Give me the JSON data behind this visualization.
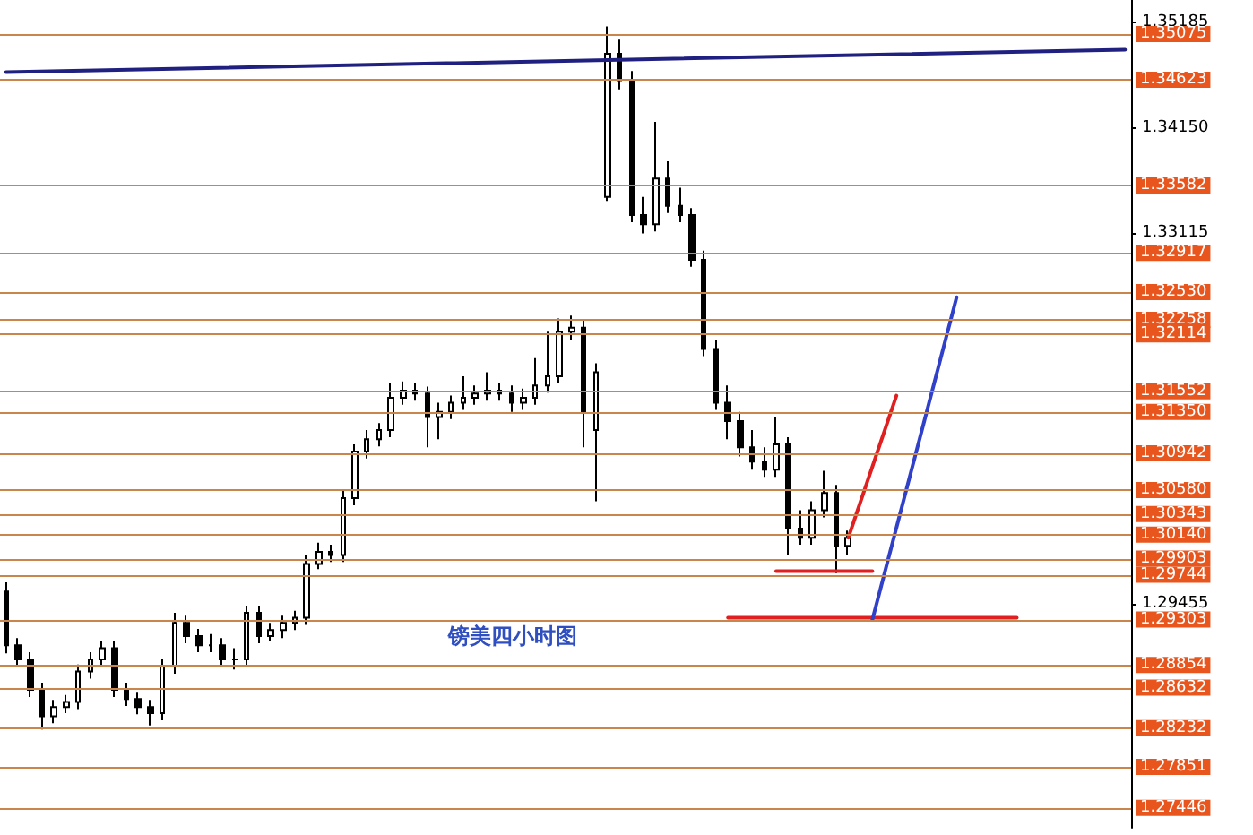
{
  "chart_data": {
    "type": "candlestick",
    "categories": [
      null,
      null,
      null,
      null,
      null,
      null,
      null,
      null,
      null,
      null,
      null,
      null,
      null,
      null,
      null,
      null,
      null,
      null,
      null,
      null,
      null,
      null,
      null,
      null,
      null,
      null,
      null,
      null,
      null,
      null,
      null,
      null,
      null,
      null,
      null,
      null,
      null,
      null,
      null,
      null,
      null,
      null,
      null,
      null,
      null,
      null,
      null,
      null,
      null,
      null,
      null,
      null,
      null,
      null,
      null,
      null,
      null,
      null,
      null,
      null,
      null,
      null,
      null,
      null,
      null,
      null,
      null,
      null,
      null,
      null,
      null,
      null,
      null,
      null,
      null,
      null,
      null,
      null,
      null,
      null,
      null,
      null,
      null,
      null,
      null,
      null,
      null,
      null,
      null,
      null,
      null,
      null,
      null,
      null
    ],
    "ohlc": [
      [
        1.2958,
        1.2967,
        1.2897,
        1.2905
      ],
      [
        1.2905,
        1.2912,
        1.2884,
        1.2891
      ],
      [
        1.2891,
        1.2898,
        1.2854,
        1.2861
      ],
      [
        1.2861,
        1.2868,
        1.2822,
        1.2835
      ],
      [
        1.2835,
        1.2851,
        1.2828,
        1.2844
      ],
      [
        1.2844,
        1.2856,
        1.2838,
        1.2849
      ],
      [
        1.2849,
        1.2886,
        1.2842,
        1.2879
      ],
      [
        1.2879,
        1.2898,
        1.2872,
        1.2891
      ],
      [
        1.2891,
        1.2909,
        1.2884,
        1.2902
      ],
      [
        1.2902,
        1.2909,
        1.2854,
        1.2861
      ],
      [
        1.2861,
        1.2868,
        1.2845,
        1.2852
      ],
      [
        1.2852,
        1.2859,
        1.2837,
        1.2844
      ],
      [
        1.2844,
        1.2851,
        1.2826,
        1.2838
      ],
      [
        1.2838,
        1.2891,
        1.2831,
        1.2884
      ],
      [
        1.2884,
        1.2937,
        1.2877,
        1.2927
      ],
      [
        1.2927,
        1.2934,
        1.2907,
        1.2914
      ],
      [
        1.2914,
        1.2921,
        1.2898,
        1.2905
      ],
      [
        1.2905,
        1.2916,
        1.2898,
        1.2905
      ],
      [
        1.2905,
        1.2912,
        1.2884,
        1.2891
      ],
      [
        1.2891,
        1.2902,
        1.2881,
        1.2891
      ],
      [
        1.2891,
        1.2944,
        1.2884,
        1.2937
      ],
      [
        1.2937,
        1.2944,
        1.2907,
        1.2914
      ],
      [
        1.2914,
        1.2927,
        1.2909,
        1.292
      ],
      [
        1.292,
        1.2934,
        1.2912,
        1.2927
      ],
      [
        1.2927,
        1.2939,
        1.292,
        1.2932
      ],
      [
        1.2932,
        1.2994,
        1.2925,
        1.2985
      ],
      [
        1.2985,
        1.3006,
        1.298,
        1.2997
      ],
      [
        1.2997,
        1.3004,
        1.2987,
        1.2994
      ],
      [
        1.2994,
        1.3057,
        1.2987,
        1.305
      ],
      [
        1.305,
        1.3103,
        1.3043,
        1.3096
      ],
      [
        1.3096,
        1.3117,
        1.3089,
        1.3108
      ],
      [
        1.3108,
        1.3124,
        1.3101,
        1.3117
      ],
      [
        1.3117,
        1.3163,
        1.311,
        1.3149
      ],
      [
        1.3149,
        1.3165,
        1.3142,
        1.3156
      ],
      [
        1.3156,
        1.3163,
        1.3146,
        1.3153
      ],
      [
        1.3153,
        1.316,
        1.31,
        1.313
      ],
      [
        1.313,
        1.3144,
        1.3108,
        1.3135
      ],
      [
        1.3135,
        1.3151,
        1.3128,
        1.3144
      ],
      [
        1.3144,
        1.317,
        1.3137,
        1.3149
      ],
      [
        1.3149,
        1.3161,
        1.3142,
        1.3153
      ],
      [
        1.3153,
        1.3174,
        1.3146,
        1.3156
      ],
      [
        1.3156,
        1.3163,
        1.3146,
        1.3153
      ],
      [
        1.3153,
        1.3161,
        1.3135,
        1.3144
      ],
      [
        1.3144,
        1.3158,
        1.3137,
        1.3149
      ],
      [
        1.3149,
        1.3188,
        1.3142,
        1.3161
      ],
      [
        1.3161,
        1.3214,
        1.3154,
        1.317
      ],
      [
        1.317,
        1.3227,
        1.3163,
        1.3214
      ],
      [
        1.3214,
        1.323,
        1.3206,
        1.3218
      ],
      [
        1.3218,
        1.3225,
        1.31,
        1.3135
      ],
      [
        1.3117,
        1.3183,
        1.3047,
        1.3174
      ],
      [
        1.3347,
        1.3515,
        1.3343,
        1.3488
      ],
      [
        1.3488,
        1.3502,
        1.3453,
        1.3462
      ],
      [
        1.3462,
        1.3471,
        1.3322,
        1.3329
      ],
      [
        1.3329,
        1.3347,
        1.3311,
        1.332
      ],
      [
        1.332,
        1.3421,
        1.3313,
        1.3365
      ],
      [
        1.3365,
        1.3382,
        1.3331,
        1.3338
      ],
      [
        1.3338,
        1.3356,
        1.3322,
        1.3329
      ],
      [
        1.3329,
        1.3336,
        1.3278,
        1.3285
      ],
      [
        1.3285,
        1.3294,
        1.319,
        1.3197
      ],
      [
        1.3197,
        1.3206,
        1.3137,
        1.3144
      ],
      [
        1.3144,
        1.3161,
        1.3108,
        1.3126
      ],
      [
        1.3126,
        1.3135,
        1.3091,
        1.31
      ],
      [
        1.31,
        1.3117,
        1.3078,
        1.3086
      ],
      [
        1.3086,
        1.31,
        1.3071,
        1.3078
      ],
      [
        1.3078,
        1.313,
        1.3071,
        1.3103
      ],
      [
        1.3103,
        1.311,
        1.2994,
        1.302
      ],
      [
        1.302,
        1.3038,
        1.3004,
        1.3011
      ],
      [
        1.3011,
        1.3047,
        1.3004,
        1.3038
      ],
      [
        1.3038,
        1.3077,
        1.3031,
        1.3055
      ],
      [
        1.3055,
        1.3063,
        1.2976,
        1.3003
      ],
      [
        1.3003,
        1.3018,
        1.2994,
        1.3011
      ],
      null,
      null,
      null,
      null,
      null,
      null,
      null,
      null,
      null,
      null,
      null,
      null,
      null,
      null,
      null,
      null,
      null,
      null,
      null,
      null,
      null,
      null,
      null
    ],
    "series": [
      {
        "type": "line",
        "color": "#202080",
        "values": [
          1.347,
          null,
          null,
          null,
          null,
          null,
          null,
          null,
          null,
          null,
          null,
          null,
          null,
          null,
          null,
          null,
          null,
          null,
          null,
          null,
          null,
          null,
          null,
          null,
          null,
          null,
          null,
          null,
          null,
          null,
          null,
          null,
          null,
          null,
          null,
          null,
          null,
          null,
          null,
          null,
          null,
          null,
          null,
          null,
          null,
          null,
          null,
          null,
          null,
          null,
          null,
          null,
          null,
          null,
          null,
          null,
          null,
          null,
          null,
          null,
          null,
          null,
          null,
          null,
          null,
          null,
          null,
          null,
          null,
          null,
          null,
          null,
          null,
          null,
          null,
          null,
          null,
          null,
          null,
          null,
          null,
          null,
          null,
          null,
          null,
          null,
          null,
          null,
          null,
          null,
          null,
          null,
          null,
          1.3492
        ]
      },
      {
        "type": "line",
        "color": "#e02020",
        "values": [
          null,
          null,
          null,
          null,
          null,
          null,
          null,
          null,
          null,
          null,
          null,
          null,
          null,
          null,
          null,
          null,
          null,
          null,
          null,
          null,
          null,
          null,
          null,
          null,
          null,
          null,
          null,
          null,
          null,
          null,
          null,
          null,
          null,
          null,
          null,
          null,
          null,
          null,
          null,
          null,
          null,
          null,
          null,
          null,
          null,
          null,
          null,
          null,
          null,
          null,
          null,
          null,
          null,
          null,
          null,
          null,
          null,
          null,
          null,
          null,
          null,
          null,
          null,
          null,
          1.2978,
          null,
          null,
          null,
          null,
          null,
          null,
          null,
          1.2978,
          null,
          null,
          null,
          null,
          null,
          null,
          null,
          null,
          null,
          null,
          null,
          null,
          null,
          null,
          null,
          null,
          null,
          null,
          null,
          null,
          null
        ]
      },
      {
        "type": "line",
        "color": "#e02020",
        "values": [
          null,
          null,
          null,
          null,
          null,
          null,
          null,
          null,
          null,
          null,
          null,
          null,
          null,
          null,
          null,
          null,
          null,
          null,
          null,
          null,
          null,
          null,
          null,
          null,
          null,
          null,
          null,
          null,
          null,
          null,
          null,
          null,
          null,
          null,
          null,
          null,
          null,
          null,
          null,
          null,
          null,
          null,
          null,
          null,
          null,
          null,
          null,
          null,
          null,
          null,
          null,
          null,
          null,
          null,
          null,
          null,
          null,
          null,
          null,
          null,
          1.2932,
          null,
          null,
          null,
          null,
          null,
          null,
          null,
          null,
          null,
          null,
          null,
          null,
          null,
          null,
          null,
          null,
          null,
          null,
          null,
          null,
          null,
          null,
          null,
          1.2932,
          null,
          null,
          null,
          null,
          null,
          null,
          null,
          null,
          null
        ]
      },
      {
        "type": "line",
        "color": "#e02020",
        "values": [
          null,
          null,
          null,
          null,
          null,
          null,
          null,
          null,
          null,
          null,
          null,
          null,
          null,
          null,
          null,
          null,
          null,
          null,
          null,
          null,
          null,
          null,
          null,
          null,
          null,
          null,
          null,
          null,
          null,
          null,
          null,
          null,
          null,
          null,
          null,
          null,
          null,
          null,
          null,
          null,
          null,
          null,
          null,
          null,
          null,
          null,
          null,
          null,
          null,
          null,
          null,
          null,
          null,
          null,
          null,
          null,
          null,
          null,
          null,
          null,
          null,
          null,
          null,
          null,
          null,
          null,
          null,
          null,
          null,
          null,
          1.3011,
          null,
          null,
          null,
          1.3151,
          null,
          null,
          null,
          null,
          null,
          null,
          null,
          null,
          null,
          null,
          null,
          null,
          null,
          null,
          null,
          null,
          null,
          null,
          null
        ]
      },
      {
        "type": "line",
        "color": "#3040c8",
        "values": [
          null,
          null,
          null,
          null,
          null,
          null,
          null,
          null,
          null,
          null,
          null,
          null,
          null,
          null,
          null,
          null,
          null,
          null,
          null,
          null,
          null,
          null,
          null,
          null,
          null,
          null,
          null,
          null,
          null,
          null,
          null,
          null,
          null,
          null,
          null,
          null,
          null,
          null,
          null,
          null,
          null,
          null,
          null,
          null,
          null,
          null,
          null,
          null,
          null,
          null,
          null,
          null,
          null,
          null,
          null,
          null,
          null,
          null,
          null,
          null,
          null,
          null,
          null,
          null,
          null,
          null,
          null,
          null,
          null,
          null,
          null,
          null,
          1.293,
          null,
          null,
          null,
          null,
          null,
          null,
          1.3248,
          null,
          null,
          null,
          null,
          null,
          null,
          null,
          null,
          null,
          null,
          null,
          null,
          null,
          null
        ]
      }
    ],
    "ref_lines": [
      {
        "axis": "y",
        "value": 1.35075,
        "label": "1.35075",
        "color": "#c8864c"
      },
      {
        "axis": "y",
        "value": 1.34623,
        "label": "1.34623",
        "color": "#c8864c"
      },
      {
        "axis": "y",
        "value": 1.33582,
        "label": "1.33582",
        "color": "#c8864c"
      },
      {
        "axis": "y",
        "value": 1.32917,
        "label": "1.32917",
        "color": "#c8864c"
      },
      {
        "axis": "y",
        "value": 1.3253,
        "label": "1.32530",
        "color": "#c8864c"
      },
      {
        "axis": "y",
        "value": 1.32258,
        "label": "1.32258",
        "color": "#c8864c"
      },
      {
        "axis": "y",
        "value": 1.32114,
        "label": "1.32114",
        "color": "#c8864c"
      },
      {
        "axis": "y",
        "value": 1.31552,
        "label": "1.31552",
        "color": "#c8864c"
      },
      {
        "axis": "y",
        "value": 1.3135,
        "label": "1.31350",
        "color": "#c8864c"
      },
      {
        "axis": "y",
        "value": 1.30942,
        "label": "1.30942",
        "color": "#c8864c"
      },
      {
        "axis": "y",
        "value": 1.3058,
        "label": "1.30580",
        "color": "#c8864c"
      },
      {
        "axis": "y",
        "value": 1.30343,
        "label": "1.30343",
        "color": "#c8864c"
      },
      {
        "axis": "y",
        "value": 1.3014,
        "label": "1.30140",
        "color": "#c8864c"
      },
      {
        "axis": "y",
        "value": 1.29903,
        "label": "1.29903",
        "color": "#c8864c"
      },
      {
        "axis": "y",
        "value": 1.29744,
        "label": "1.29744",
        "color": "#c8864c"
      },
      {
        "axis": "y",
        "value": 1.29303,
        "label": "1.29303",
        "color": "#c8864c"
      },
      {
        "axis": "y",
        "value": 1.28854,
        "label": "1.28854",
        "color": "#c8864c"
      },
      {
        "axis": "y",
        "value": 1.28632,
        "label": "1.28632",
        "color": "#c8864c"
      },
      {
        "axis": "y",
        "value": 1.28232,
        "label": "1.28232",
        "color": "#c8864c"
      },
      {
        "axis": "y",
        "value": 1.27851,
        "label": "1.27851",
        "color": "#c8864c"
      },
      {
        "axis": "y",
        "value": 1.27446,
        "label": "1.27446",
        "color": "#c8864c"
      }
    ],
    "ylim": [
      1.2725,
      1.3541
    ],
    "yticks": [
      {
        "value": 1.35185,
        "label": "1.35185"
      },
      {
        "value": 1.3415,
        "label": "1.34150"
      },
      {
        "value": 1.33115,
        "label": "1.33115"
      },
      {
        "value": 1.29455,
        "label": "1.29455"
      }
    ],
    "annotations": [
      "镑美四小时图"
    ]
  }
}
